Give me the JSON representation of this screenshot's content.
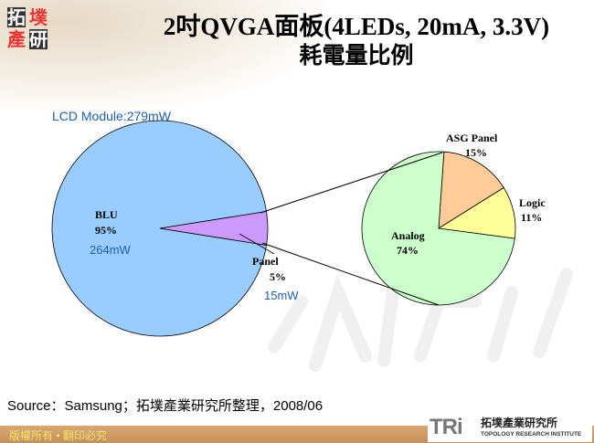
{
  "header": {
    "title_line1": "2吋QVGA面板(4LEDs, 20mA, 3.3V)",
    "title_line2": "耗電量比例",
    "logo_text": [
      "拓",
      "墣",
      "產",
      "研"
    ]
  },
  "chart_data": [
    {
      "type": "pie",
      "title": "LCD Module:279mW",
      "slices": [
        {
          "label": "BLU",
          "percent": 95,
          "value_label": "264mW",
          "color": "#99ccff"
        },
        {
          "label": "Panel",
          "percent": 5,
          "value_label": "15mW",
          "color": "#cc99ff"
        }
      ]
    },
    {
      "type": "pie",
      "slices": [
        {
          "label": "ASG Panel",
          "percent": 15,
          "color": "#ffcc99"
        },
        {
          "label": "Logic",
          "percent": 11,
          "color": "#ffff99"
        },
        {
          "label": "Analog",
          "percent": 74,
          "color": "#ccffcc"
        }
      ]
    }
  ],
  "source": "Source：Samsung；拓墣產業研究所整理，2008/06",
  "footer": {
    "copyright": "版權所有 • 翻印必究",
    "tri_logo": "TRi",
    "tri_cn": "拓墣產業研究所",
    "tri_en": "TOPOLOGY RESEARCH INSTITUTE"
  }
}
